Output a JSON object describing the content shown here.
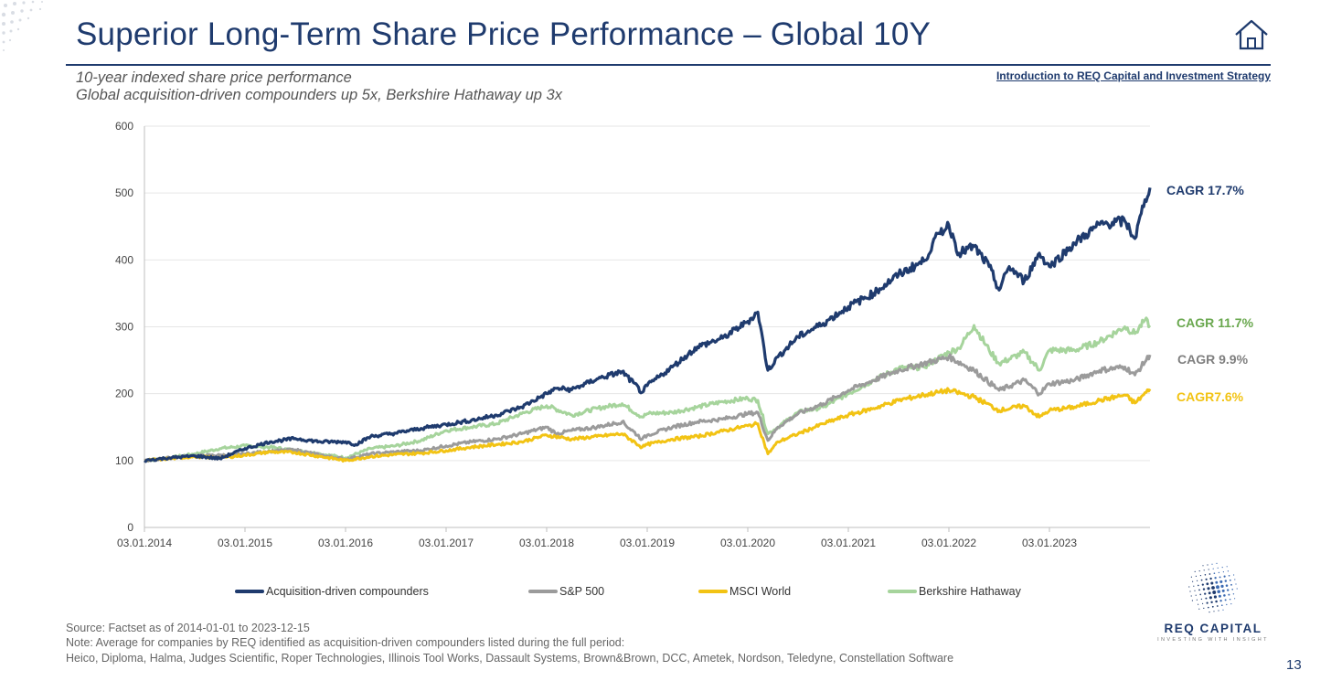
{
  "page": {
    "title": "Superior Long-Term Share Price Performance – Global 10Y",
    "breadcrumb": "Introduction to REQ Capital and Investment Strategy",
    "subtitle_1": "10-year indexed share price performance",
    "subtitle_2": "Global acquisition-driven compounders up 5x, Berkshire Hathaway up 3x",
    "source": "Source: Factset as of 2014-01-01 to 2023-12-15",
    "note": "Note: Average for companies by REQ identified as acquisition-driven compounders listed during the full period:",
    "companies": "Heico, Diploma, Halma, Judges Scientific, Roper Technologies, Illinois Tool Works, Dassault Systems, Brown&Brown, DCC, Ametek, Nordson, Teledyne, Constellation Software",
    "logo_name": "REQ CAPITAL",
    "logo_tagline": "INVESTING WITH INSIGHT",
    "page_number": "13",
    "icons": {
      "home": "home-icon",
      "logo": "dotted-globe-logo"
    }
  },
  "chart_data": {
    "type": "line",
    "title": "",
    "xlabel": "",
    "ylabel": "",
    "ylim": [
      0,
      600
    ],
    "yticks": [
      0,
      100,
      200,
      300,
      400,
      500,
      600
    ],
    "xlim": [
      2014.0,
      2024.0
    ],
    "xticks": [
      {
        "x": 2014.0,
        "label": "03.01.2014"
      },
      {
        "x": 2015.0,
        "label": "03.01.2015"
      },
      {
        "x": 2016.0,
        "label": "03.01.2016"
      },
      {
        "x": 2017.0,
        "label": "03.01.2017"
      },
      {
        "x": 2018.0,
        "label": "03.01.2018"
      },
      {
        "x": 2019.0,
        "label": "03.01.2019"
      },
      {
        "x": 2020.0,
        "label": "03.01.2020"
      },
      {
        "x": 2021.0,
        "label": "03.01.2021"
      },
      {
        "x": 2022.0,
        "label": "03.01.2022"
      },
      {
        "x": 2023.0,
        "label": "03.01.2023"
      }
    ],
    "grid": true,
    "legend_position": "bottom",
    "series": [
      {
        "name": "Acquisition-driven compounders",
        "color": "#1f3b6e",
        "annotation": "CAGR 17.7%",
        "points": [
          [
            2014.0,
            100
          ],
          [
            2014.25,
            104
          ],
          [
            2014.5,
            107
          ],
          [
            2014.75,
            103
          ],
          [
            2015.0,
            118
          ],
          [
            2015.25,
            128
          ],
          [
            2015.5,
            133
          ],
          [
            2015.75,
            128
          ],
          [
            2016.0,
            128
          ],
          [
            2016.1,
            124
          ],
          [
            2016.25,
            136
          ],
          [
            2016.5,
            141
          ],
          [
            2016.75,
            148
          ],
          [
            2017.0,
            154
          ],
          [
            2017.25,
            160
          ],
          [
            2017.5,
            168
          ],
          [
            2017.75,
            180
          ],
          [
            2018.0,
            200
          ],
          [
            2018.1,
            208
          ],
          [
            2018.25,
            206
          ],
          [
            2018.5,
            222
          ],
          [
            2018.75,
            233
          ],
          [
            2018.95,
            202
          ],
          [
            2019.0,
            212
          ],
          [
            2019.25,
            240
          ],
          [
            2019.5,
            270
          ],
          [
            2019.75,
            283
          ],
          [
            2020.0,
            308
          ],
          [
            2020.1,
            322
          ],
          [
            2020.2,
            235
          ],
          [
            2020.3,
            255
          ],
          [
            2020.5,
            285
          ],
          [
            2020.75,
            305
          ],
          [
            2021.0,
            330
          ],
          [
            2021.25,
            350
          ],
          [
            2021.5,
            378
          ],
          [
            2021.75,
            398
          ],
          [
            2021.9,
            440
          ],
          [
            2022.0,
            452
          ],
          [
            2022.1,
            410
          ],
          [
            2022.25,
            420
          ],
          [
            2022.4,
            390
          ],
          [
            2022.5,
            355
          ],
          [
            2022.6,
            390
          ],
          [
            2022.75,
            368
          ],
          [
            2022.9,
            410
          ],
          [
            2023.0,
            390
          ],
          [
            2023.25,
            425
          ],
          [
            2023.5,
            453
          ],
          [
            2023.75,
            458
          ],
          [
            2023.85,
            432
          ],
          [
            2023.95,
            490
          ],
          [
            2024.0,
            508
          ]
        ]
      },
      {
        "name": "S&P 500",
        "color": "#9b9b9b",
        "annotation": "CAGR 9.9%",
        "points": [
          [
            2014.0,
            100
          ],
          [
            2014.25,
            104
          ],
          [
            2014.5,
            107
          ],
          [
            2014.75,
            108
          ],
          [
            2015.0,
            110
          ],
          [
            2015.25,
            114
          ],
          [
            2015.5,
            116
          ],
          [
            2015.75,
            108
          ],
          [
            2016.0,
            102
          ],
          [
            2016.25,
            110
          ],
          [
            2016.5,
            113
          ],
          [
            2016.75,
            115
          ],
          [
            2017.0,
            122
          ],
          [
            2017.25,
            128
          ],
          [
            2017.5,
            132
          ],
          [
            2017.75,
            140
          ],
          [
            2018.0,
            150
          ],
          [
            2018.1,
            140
          ],
          [
            2018.25,
            145
          ],
          [
            2018.5,
            150
          ],
          [
            2018.75,
            158
          ],
          [
            2018.95,
            132
          ],
          [
            2019.0,
            138
          ],
          [
            2019.25,
            150
          ],
          [
            2019.5,
            158
          ],
          [
            2019.75,
            162
          ],
          [
            2020.0,
            170
          ],
          [
            2020.1,
            172
          ],
          [
            2020.2,
            130
          ],
          [
            2020.3,
            150
          ],
          [
            2020.5,
            170
          ],
          [
            2020.75,
            185
          ],
          [
            2021.0,
            205
          ],
          [
            2021.25,
            220
          ],
          [
            2021.5,
            235
          ],
          [
            2021.75,
            245
          ],
          [
            2022.0,
            255
          ],
          [
            2022.25,
            235
          ],
          [
            2022.5,
            205
          ],
          [
            2022.75,
            220
          ],
          [
            2022.9,
            200
          ],
          [
            2023.0,
            215
          ],
          [
            2023.25,
            220
          ],
          [
            2023.5,
            235
          ],
          [
            2023.75,
            240
          ],
          [
            2023.85,
            228
          ],
          [
            2024.0,
            258
          ]
        ]
      },
      {
        "name": "MSCI World",
        "color": "#f2c314",
        "annotation": "CAGR7.6%",
        "points": [
          [
            2014.0,
            100
          ],
          [
            2014.25,
            103
          ],
          [
            2014.5,
            106
          ],
          [
            2014.75,
            104
          ],
          [
            2015.0,
            108
          ],
          [
            2015.25,
            113
          ],
          [
            2015.5,
            112
          ],
          [
            2015.75,
            106
          ],
          [
            2016.0,
            100
          ],
          [
            2016.25,
            106
          ],
          [
            2016.5,
            109
          ],
          [
            2016.75,
            111
          ],
          [
            2017.0,
            115
          ],
          [
            2017.25,
            120
          ],
          [
            2017.5,
            124
          ],
          [
            2017.75,
            128
          ],
          [
            2018.0,
            138
          ],
          [
            2018.25,
            132
          ],
          [
            2018.5,
            136
          ],
          [
            2018.75,
            140
          ],
          [
            2018.95,
            120
          ],
          [
            2019.0,
            124
          ],
          [
            2019.25,
            132
          ],
          [
            2019.5,
            136
          ],
          [
            2019.75,
            144
          ],
          [
            2020.0,
            152
          ],
          [
            2020.1,
            155
          ],
          [
            2020.2,
            110
          ],
          [
            2020.3,
            128
          ],
          [
            2020.5,
            140
          ],
          [
            2020.75,
            155
          ],
          [
            2021.0,
            168
          ],
          [
            2021.25,
            178
          ],
          [
            2021.5,
            190
          ],
          [
            2021.75,
            198
          ],
          [
            2022.0,
            205
          ],
          [
            2022.25,
            195
          ],
          [
            2022.5,
            175
          ],
          [
            2022.75,
            182
          ],
          [
            2022.9,
            165
          ],
          [
            2023.0,
            175
          ],
          [
            2023.25,
            180
          ],
          [
            2023.5,
            190
          ],
          [
            2023.75,
            198
          ],
          [
            2023.85,
            186
          ],
          [
            2024.0,
            207
          ]
        ]
      },
      {
        "name": "Berkshire Hathaway",
        "color": "#a6d49c",
        "annotation": "CAGR 11.7%",
        "points": [
          [
            2014.0,
            100
          ],
          [
            2014.25,
            104
          ],
          [
            2014.5,
            110
          ],
          [
            2014.75,
            118
          ],
          [
            2015.0,
            122
          ],
          [
            2015.25,
            120
          ],
          [
            2015.5,
            115
          ],
          [
            2015.75,
            110
          ],
          [
            2016.0,
            104
          ],
          [
            2016.25,
            118
          ],
          [
            2016.5,
            122
          ],
          [
            2016.75,
            130
          ],
          [
            2017.0,
            145
          ],
          [
            2017.25,
            150
          ],
          [
            2017.5,
            155
          ],
          [
            2017.75,
            170
          ],
          [
            2018.0,
            182
          ],
          [
            2018.25,
            168
          ],
          [
            2018.5,
            178
          ],
          [
            2018.75,
            185
          ],
          [
            2018.95,
            165
          ],
          [
            2019.0,
            170
          ],
          [
            2019.25,
            172
          ],
          [
            2019.5,
            180
          ],
          [
            2019.75,
            188
          ],
          [
            2020.0,
            193
          ],
          [
            2020.1,
            190
          ],
          [
            2020.2,
            140
          ],
          [
            2020.3,
            150
          ],
          [
            2020.5,
            172
          ],
          [
            2020.75,
            180
          ],
          [
            2021.0,
            200
          ],
          [
            2021.25,
            220
          ],
          [
            2021.5,
            238
          ],
          [
            2021.75,
            240
          ],
          [
            2022.0,
            262
          ],
          [
            2022.1,
            268
          ],
          [
            2022.25,
            302
          ],
          [
            2022.4,
            265
          ],
          [
            2022.5,
            245
          ],
          [
            2022.75,
            262
          ],
          [
            2022.9,
            235
          ],
          [
            2023.0,
            265
          ],
          [
            2023.25,
            265
          ],
          [
            2023.5,
            278
          ],
          [
            2023.75,
            300
          ],
          [
            2023.85,
            290
          ],
          [
            2023.95,
            310
          ],
          [
            2024.0,
            302
          ]
        ]
      }
    ]
  }
}
